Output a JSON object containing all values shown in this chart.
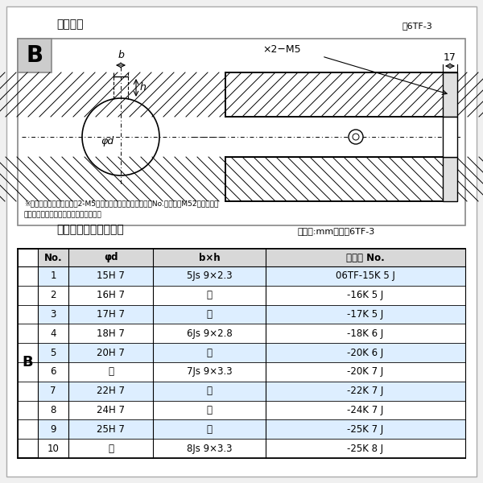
{
  "title_top": "軸穴形状",
  "fig_label_top": "嘷6TF-3",
  "table_title": "軸穴形状コード一覧表",
  "table_unit": "（単位:mm）　表6TF-3",
  "note1": "※セットボルト用タップ（2-M5）が必要な場合は右記コードNo.の末尾にM52を付ける。",
  "note2": "（セットボルトは付属されています。）",
  "table_header": [
    "No.",
    "φd",
    "b×h",
    "コード No."
  ],
  "col_B_label": "B",
  "table_rows": [
    [
      "1",
      "15H 7",
      "5Js 9×2.3",
      "06TF-15K 5 J"
    ],
    [
      "2",
      "16H 7",
      "〃",
      "-16K 5 J"
    ],
    [
      "3",
      "17H 7",
      "〃",
      "-17K 5 J"
    ],
    [
      "4",
      "18H 7",
      "6Js 9×2.8",
      "-18K 6 J"
    ],
    [
      "5",
      "20H 7",
      "〃",
      "-20K 6 J"
    ],
    [
      "6",
      "〃",
      "7Js 9×3.3",
      "-20K 7 J"
    ],
    [
      "7",
      "22H 7",
      "〃",
      "-22K 7 J"
    ],
    [
      "8",
      "24H 7",
      "〃",
      "-24K 7 J"
    ],
    [
      "9",
      "25H 7",
      "〃",
      "-25K 7 J"
    ],
    [
      "10",
      "〃",
      "8Js 9×3.3",
      "-25K 8 J"
    ]
  ],
  "dim_17": "17",
  "label_b": "b",
  "label_h": "h",
  "label_phid": "φd",
  "note_m5": "×2－M5",
  "row_colors": [
    "#ddeeff",
    "#ffffff",
    "#ddeeff",
    "#ffffff",
    "#ddeeff",
    "#ffffff",
    "#ddeeff",
    "#ffffff",
    "#ddeeff",
    "#ffffff"
  ]
}
